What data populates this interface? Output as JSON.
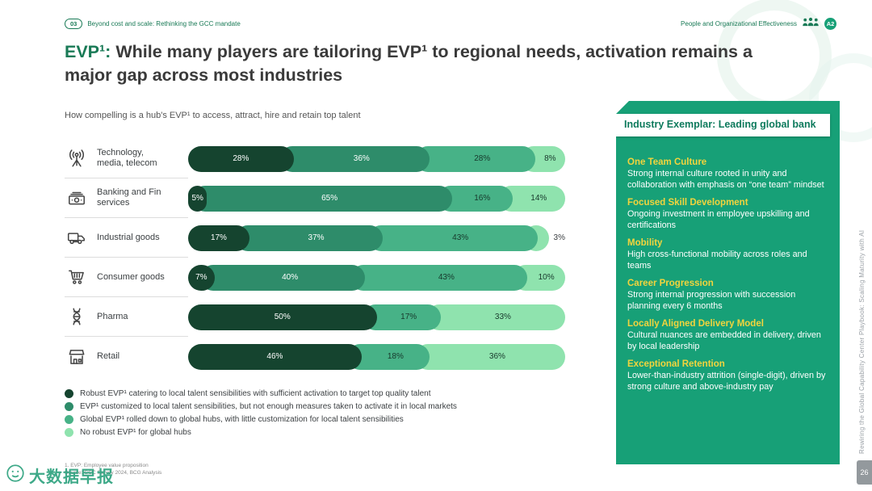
{
  "header": {
    "section_number": "03",
    "section_title": "Beyond cost and scale: Rethinking the GCC mandate",
    "right_label": "People and Organizational Effectiveness",
    "badge": "A2"
  },
  "title": {
    "prefix": "EVP¹:",
    "rest": " While many players are tailoring EVP¹ to regional needs, activation remains a major gap across most industries"
  },
  "subtitle": "How compelling is a hub's EVP¹ to access, attract, hire and retain top talent",
  "chart_data": {
    "type": "bar",
    "stacked": true,
    "orientation": "horizontal",
    "unit": "%",
    "xlim": [
      0,
      100
    ],
    "categories": [
      "Technology, media, telecom",
      "Banking and Fin services",
      "Industrial goods",
      "Consumer goods",
      "Pharma",
      "Retail"
    ],
    "icons": [
      "antenna-icon",
      "banknotes-icon",
      "truck-icon",
      "cart-icon",
      "dna-icon",
      "storefront-icon"
    ],
    "series": [
      {
        "name": "Robust EVP¹ catering to local talent sensibilities with sufficient activation to target top quality talent",
        "color": "#15442f",
        "values": [
          28,
          5,
          17,
          7,
          50,
          46
        ]
      },
      {
        "name": "EVP¹ customized to local talent sensibilities, but not enough measures taken to activate it in local markets",
        "color": "#2e8c6a",
        "values": [
          36,
          65,
          37,
          40,
          0,
          0
        ]
      },
      {
        "name": "Global EVP¹ rolled down to global hubs, with little customization for local talent sensibilities",
        "color": "#47b287",
        "values": [
          28,
          16,
          43,
          43,
          17,
          18
        ]
      },
      {
        "name": "No robust EVP¹ for global hubs",
        "color": "#8fe3ae",
        "values": [
          8,
          14,
          3,
          10,
          33,
          36
        ]
      }
    ]
  },
  "panel": {
    "header": "Industry Exemplar: Leading global bank",
    "sections": [
      {
        "heading": "One Team Culture",
        "body": "Strong internal culture rooted in unity and collaboration with emphasis on “one team” mindset"
      },
      {
        "heading": "Focused Skill Development",
        "body": "Ongoing investment in employee upskilling and certifications"
      },
      {
        "heading": "Mobility",
        "body": "High cross-functional mobility across roles and teams"
      },
      {
        "heading": "Career Progression",
        "body": "Strong internal progression with succession planning every 6 months"
      },
      {
        "heading": "Locally Aligned Delivery Model",
        "body": "Cultural nuances are embedded in delivery, driven by local leadership"
      },
      {
        "heading": "Exceptional Retention",
        "body": "Lower-than-industry attrition (single-digit), driven by strong culture and above-industry pay"
      }
    ]
  },
  "side_label": "Rewiring the Global Capability Center Playbook: Scaling Maturity with AI",
  "footer": {
    "note": "1. EVP: Employee value proposition",
    "source": "Source: GCC Survey 2024, BCG Analysis",
    "page": "26"
  },
  "watermark": "大数据早报",
  "colors": {
    "accent_green": "#197a56",
    "panel_green": "#17a077",
    "panel_yellow": "#f2d43d"
  }
}
